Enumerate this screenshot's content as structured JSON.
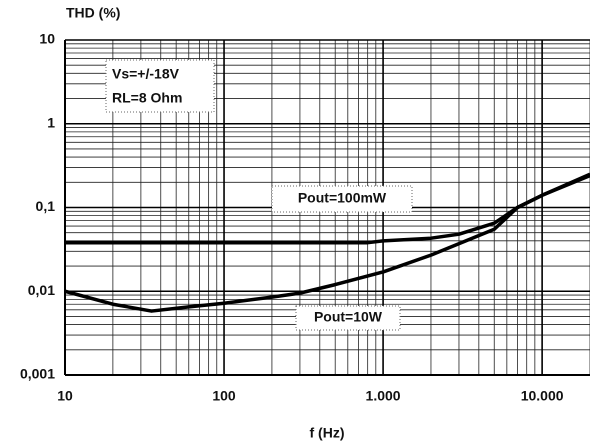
{
  "chart_data": {
    "type": "line",
    "ylabel": "THD (%)",
    "xlabel": "f (Hz)",
    "annotations": [
      "Vs=+/-18V",
      "RL=8 Ohm"
    ],
    "xlog": true,
    "ylog": true,
    "grid": true,
    "minor_grid": true,
    "xlim": [
      10,
      20000
    ],
    "ylim": [
      0.001,
      10
    ],
    "xticks": [
      10,
      100,
      {
        "value": 1000,
        "label": "1.000"
      },
      {
        "value": 10000,
        "label": "10.000"
      }
    ],
    "yticks": [
      {
        "value": 0.001,
        "label": "0,001"
      },
      {
        "value": 0.01,
        "label": "0,01"
      },
      {
        "value": 0.1,
        "label": "0,1"
      },
      1,
      10
    ],
    "series": [
      {
        "name": "Pout=100mW",
        "color": "#000000",
        "x": [
          10,
          100,
          500,
          800,
          1000,
          2000,
          3000,
          5000,
          7000,
          10000,
          20000
        ],
        "values": [
          0.038,
          0.038,
          0.038,
          0.038,
          0.04,
          0.043,
          0.048,
          0.065,
          0.1,
          0.14,
          0.24
        ]
      },
      {
        "name": "Pout=10W",
        "color": "#000000",
        "x": [
          10,
          20,
          35,
          60,
          100,
          200,
          300,
          500,
          1000,
          2000,
          5000,
          7000,
          10000,
          20000
        ],
        "values": [
          0.01,
          0.007,
          0.0058,
          0.0065,
          0.0072,
          0.0085,
          0.0095,
          0.012,
          0.017,
          0.027,
          0.055,
          0.1,
          0.14,
          0.25
        ]
      }
    ]
  }
}
